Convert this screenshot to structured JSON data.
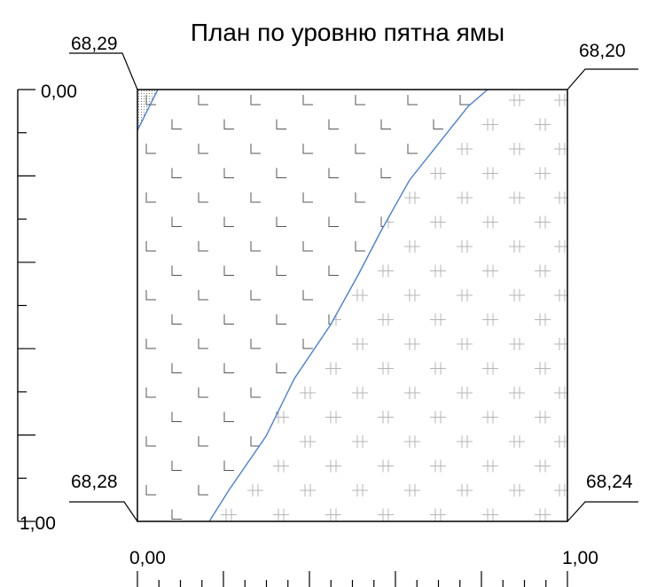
{
  "title": "План по уровню пятна ямы",
  "corners": {
    "top_left": "68,29",
    "top_right": "68,20",
    "bottom_left": "68,28",
    "bottom_right": "68,24"
  },
  "axes": {
    "left_top": "0,00",
    "left_bottom": "1,00",
    "bottom_left": "0,00",
    "bottom_right": "1,00"
  },
  "colors": {
    "boundary_line": "#4a7fd4",
    "frame": "#000000",
    "hatch_l": "#555555",
    "hatch_plus": "#b5b5b5"
  }
}
